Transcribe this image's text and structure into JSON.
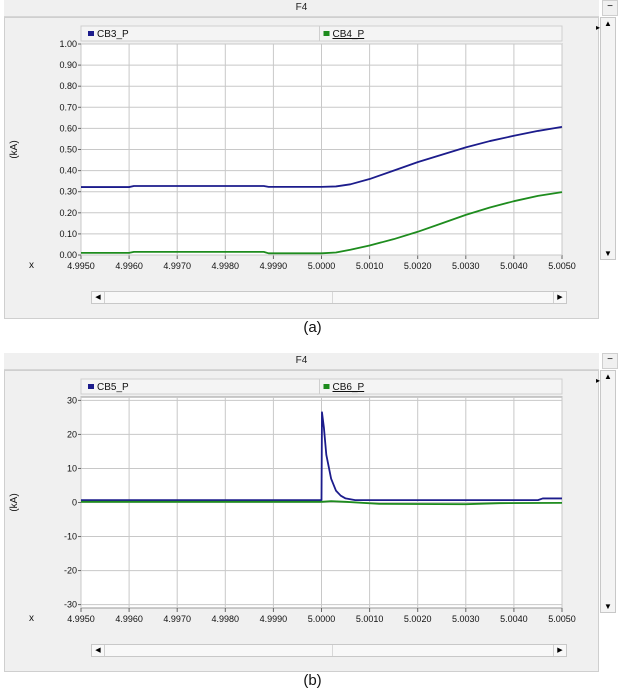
{
  "panels": [
    {
      "window_title": "F4",
      "caption": "(a)",
      "minimize_label": "−",
      "chart_data": {
        "type": "line",
        "ylabel": "(kA)",
        "xlabel": "x",
        "xlim": [
          4.995,
          5.005
        ],
        "ylim": [
          0,
          1.0
        ],
        "xticks": [
          "4.9950",
          "4.9960",
          "4.9970",
          "4.9980",
          "4.9990",
          "5.0000",
          "5.0010",
          "5.0020",
          "5.0030",
          "5.0040",
          "5.0050"
        ],
        "yticks": [
          "1.00",
          "0.90",
          "0.80",
          "0.70",
          "0.60",
          "0.50",
          "0.40",
          "0.30",
          "0.20",
          "0.10",
          "0.00"
        ],
        "ytick_values": [
          1.0,
          0.9,
          0.8,
          0.7,
          0.6,
          0.5,
          0.4,
          0.3,
          0.2,
          0.1,
          0.0
        ],
        "grid": true,
        "legend_position": "top",
        "series": [
          {
            "name": "CB3_P",
            "color": "#1c1c8c",
            "points": [
              [
                4.995,
                0.322
              ],
              [
                4.996,
                0.322
              ],
              [
                4.9961,
                0.327
              ],
              [
                4.9988,
                0.327
              ],
              [
                4.9989,
                0.323
              ],
              [
                5.0,
                0.323
              ],
              [
                5.0003,
                0.325
              ],
              [
                5.0006,
                0.335
              ],
              [
                5.001,
                0.36
              ],
              [
                5.0015,
                0.4
              ],
              [
                5.002,
                0.44
              ],
              [
                5.0025,
                0.475
              ],
              [
                5.003,
                0.51
              ],
              [
                5.0035,
                0.54
              ],
              [
                5.004,
                0.565
              ],
              [
                5.0045,
                0.588
              ],
              [
                5.005,
                0.607
              ]
            ]
          },
          {
            "name": "CB4_P",
            "color": "#1e8c1e",
            "points": [
              [
                4.995,
                0.01
              ],
              [
                4.996,
                0.01
              ],
              [
                4.9961,
                0.015
              ],
              [
                4.9988,
                0.015
              ],
              [
                4.9989,
                0.008
              ],
              [
                4.999,
                0.008
              ],
              [
                5.0,
                0.008
              ],
              [
                5.0003,
                0.012
              ],
              [
                5.0006,
                0.025
              ],
              [
                5.001,
                0.045
              ],
              [
                5.0015,
                0.075
              ],
              [
                5.002,
                0.11
              ],
              [
                5.0025,
                0.15
              ],
              [
                5.003,
                0.19
              ],
              [
                5.0035,
                0.225
              ],
              [
                5.004,
                0.255
              ],
              [
                5.0045,
                0.28
              ],
              [
                5.005,
                0.298
              ]
            ]
          }
        ]
      }
    },
    {
      "window_title": "F4",
      "caption": "(b)",
      "minimize_label": "−",
      "chart_data": {
        "type": "line",
        "ylabel": "(kA)",
        "xlabel": "x",
        "xlim": [
          4.995,
          5.005
        ],
        "ylim": [
          -31,
          31
        ],
        "xticks": [
          "4.9950",
          "4.9960",
          "4.9970",
          "4.9980",
          "4.9990",
          "5.0000",
          "5.0010",
          "5.0020",
          "5.0030",
          "5.0040",
          "5.0050"
        ],
        "yticks": [
          "30",
          "20",
          "10",
          "0",
          "-10",
          "-20",
          "-30"
        ],
        "ytick_values": [
          30,
          20,
          10,
          0,
          -10,
          -20,
          -30
        ],
        "grid": true,
        "legend_position": "top",
        "series": [
          {
            "name": "CB5_P",
            "color": "#1c1c8c",
            "points": [
              [
                4.995,
                0.7
              ],
              [
                5.0,
                0.7
              ],
              [
                5.00001,
                26.5
              ],
              [
                5.00005,
                22
              ],
              [
                5.0001,
                14
              ],
              [
                5.0002,
                7
              ],
              [
                5.0003,
                3.5
              ],
              [
                5.0004,
                2
              ],
              [
                5.0005,
                1.2
              ],
              [
                5.0007,
                0.7
              ],
              [
                5.0045,
                0.7
              ],
              [
                5.0046,
                1.2
              ],
              [
                5.005,
                1.2
              ]
            ]
          },
          {
            "name": "CB6_P",
            "color": "#1e8c1e",
            "points": [
              [
                4.995,
                0.2
              ],
              [
                5.0,
                0.2
              ],
              [
                5.0002,
                0.4
              ],
              [
                5.0005,
                0.2
              ],
              [
                5.0012,
                -0.4
              ],
              [
                5.003,
                -0.5
              ],
              [
                5.0037,
                -0.2
              ],
              [
                5.005,
                -0.1
              ]
            ]
          }
        ]
      }
    }
  ]
}
